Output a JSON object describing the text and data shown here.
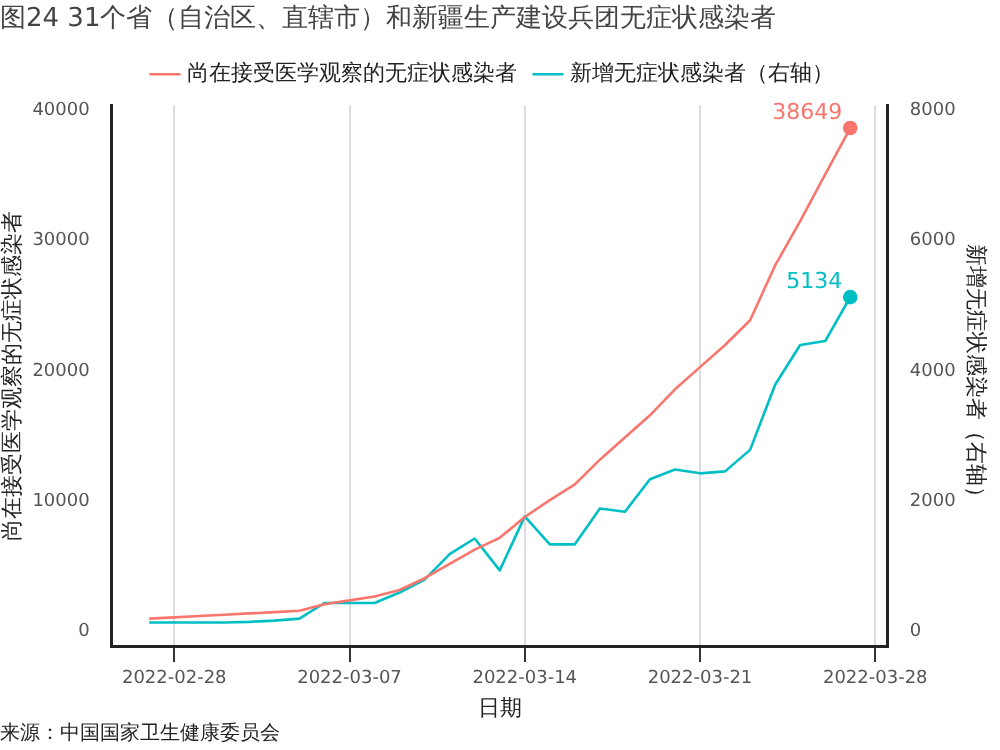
{
  "chart_data": {
    "type": "line",
    "title": "图24 31个省（自治区、直辖市）和新疆生产建设兵团无症状感染者",
    "xlabel": "日期",
    "ylabel": "尚在接受医学观察的无症状感染者",
    "y2label": "新增无症状感染者（右轴）",
    "annotations": [
      "来源：中国国家卫生健康委员会"
    ],
    "x": [
      "2022-02-27",
      "2022-02-28",
      "2022-03-01",
      "2022-03-02",
      "2022-03-03",
      "2022-03-04",
      "2022-03-05",
      "2022-03-06",
      "2022-03-07",
      "2022-03-08",
      "2022-03-09",
      "2022-03-10",
      "2022-03-11",
      "2022-03-12",
      "2022-03-13",
      "2022-03-14",
      "2022-03-15",
      "2022-03-16",
      "2022-03-17",
      "2022-03-18",
      "2022-03-19",
      "2022-03-20",
      "2022-03-21",
      "2022-03-22",
      "2022-03-23",
      "2022-03-24",
      "2022-03-25",
      "2022-03-26",
      "2022-03-27"
    ],
    "series": [
      {
        "name": "尚在接受医学观察的无症状感染者",
        "color": "#f8766d",
        "values": [
          1000,
          1100,
          1200,
          1300,
          1400,
          1500,
          1600,
          2100,
          2400,
          2700,
          3200,
          4100,
          5200,
          6300,
          7200,
          8800,
          10100,
          11300,
          13200,
          14900,
          16600,
          18600,
          20300,
          22000,
          23900,
          28100,
          31500,
          35100,
          38649
        ],
        "value_labels": [
          null,
          null,
          null,
          null,
          null,
          null,
          null,
          null,
          null,
          null,
          null,
          null,
          null,
          null,
          null,
          null,
          null,
          null,
          null,
          null,
          null,
          null,
          null,
          null,
          null,
          null,
          null,
          null,
          "38649"
        ]
      },
      {
        "name": "新增无症状感染者（右轴）",
        "color": "#00bfc4",
        "axis": "y2",
        "values": [
          140,
          140,
          140,
          140,
          150,
          170,
          200,
          440,
          440,
          440,
          600,
          800,
          1190,
          1430,
          940,
          1770,
          1340,
          1340,
          1890,
          1840,
          2340,
          2490,
          2430,
          2460,
          2790,
          3790,
          4400,
          4460,
          5134
        ],
        "value_labels": [
          null,
          null,
          null,
          null,
          null,
          null,
          null,
          null,
          null,
          null,
          null,
          null,
          null,
          null,
          null,
          null,
          null,
          null,
          null,
          null,
          null,
          null,
          null,
          null,
          null,
          null,
          null,
          null,
          "5134"
        ]
      }
    ],
    "xlim": [
      "2022-02-25T12:00",
      "2022-03-28T12:00"
    ],
    "xticks": [
      "2022-02-28",
      "2022-03-07",
      "2022-03-14",
      "2022-03-21",
      "2022-03-28"
    ],
    "ylim": [
      -1100,
      40400
    ],
    "yticks": [
      0,
      10000,
      20000,
      30000,
      40000
    ],
    "y2lim": [
      -220,
      8080
    ],
    "y2ticks": [
      0,
      2000,
      4000,
      6000,
      8000
    ],
    "grid": "x",
    "legend": "top"
  }
}
